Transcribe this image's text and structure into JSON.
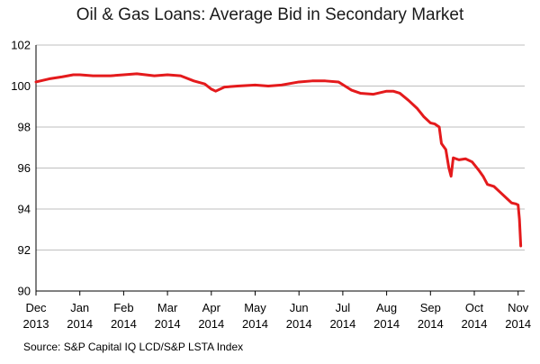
{
  "chart_data": {
    "type": "line",
    "title": "Oil & Gas Loans: Average Bid in Secondary Market",
    "source": "Source: S&P Capital IQ LCD/S&P LSTA Index",
    "ylim": [
      90,
      102
    ],
    "yticks": [
      90,
      92,
      94,
      96,
      98,
      100,
      102
    ],
    "grid": true,
    "line_color": "#e41a1c",
    "xticks": [
      {
        "t": 0,
        "line1": "Dec",
        "line2": "2013"
      },
      {
        "t": 1,
        "line1": "Jan",
        "line2": "2014"
      },
      {
        "t": 2,
        "line1": "Feb",
        "line2": "2014"
      },
      {
        "t": 3,
        "line1": "Mar",
        "line2": "2014"
      },
      {
        "t": 4,
        "line1": "Apr",
        "line2": "2014"
      },
      {
        "t": 5,
        "line1": "May",
        "line2": "2014"
      },
      {
        "t": 6,
        "line1": "Jun",
        "line2": "2014"
      },
      {
        "t": 7,
        "line1": "Jul",
        "line2": "2014"
      },
      {
        "t": 8,
        "line1": "Aug",
        "line2": "2014"
      },
      {
        "t": 9,
        "line1": "Sep",
        "line2": "2014"
      },
      {
        "t": 10,
        "line1": "Oct",
        "line2": "2014"
      },
      {
        "t": 11,
        "line1": "Nov",
        "line2": "2014"
      }
    ],
    "series": [
      {
        "points": [
          [
            0.0,
            100.2
          ],
          [
            0.3,
            100.35
          ],
          [
            0.6,
            100.45
          ],
          [
            0.85,
            100.55
          ],
          [
            1.0,
            100.55
          ],
          [
            1.3,
            100.5
          ],
          [
            1.7,
            100.5
          ],
          [
            2.0,
            100.55
          ],
          [
            2.3,
            100.6
          ],
          [
            2.7,
            100.5
          ],
          [
            3.0,
            100.55
          ],
          [
            3.3,
            100.5
          ],
          [
            3.6,
            100.25
          ],
          [
            3.85,
            100.1
          ],
          [
            4.0,
            99.85
          ],
          [
            4.1,
            99.75
          ],
          [
            4.3,
            99.95
          ],
          [
            4.6,
            100.0
          ],
          [
            5.0,
            100.05
          ],
          [
            5.3,
            100.0
          ],
          [
            5.6,
            100.05
          ],
          [
            6.0,
            100.2
          ],
          [
            6.3,
            100.25
          ],
          [
            6.6,
            100.25
          ],
          [
            6.9,
            100.2
          ],
          [
            7.05,
            100.0
          ],
          [
            7.2,
            99.8
          ],
          [
            7.4,
            99.65
          ],
          [
            7.7,
            99.6
          ],
          [
            8.0,
            99.75
          ],
          [
            8.15,
            99.75
          ],
          [
            8.3,
            99.65
          ],
          [
            8.5,
            99.3
          ],
          [
            8.7,
            98.9
          ],
          [
            8.85,
            98.5
          ],
          [
            9.0,
            98.2
          ],
          [
            9.1,
            98.15
          ],
          [
            9.2,
            98.0
          ],
          [
            9.25,
            97.2
          ],
          [
            9.35,
            96.9
          ],
          [
            9.42,
            96.0
          ],
          [
            9.47,
            95.6
          ],
          [
            9.52,
            96.5
          ],
          [
            9.65,
            96.4
          ],
          [
            9.8,
            96.45
          ],
          [
            9.95,
            96.3
          ],
          [
            10.1,
            95.9
          ],
          [
            10.2,
            95.6
          ],
          [
            10.3,
            95.2
          ],
          [
            10.45,
            95.1
          ],
          [
            10.6,
            94.8
          ],
          [
            10.75,
            94.5
          ],
          [
            10.85,
            94.3
          ],
          [
            10.95,
            94.25
          ],
          [
            11.0,
            94.2
          ],
          [
            11.03,
            93.5
          ],
          [
            11.06,
            92.2
          ]
        ]
      }
    ]
  }
}
